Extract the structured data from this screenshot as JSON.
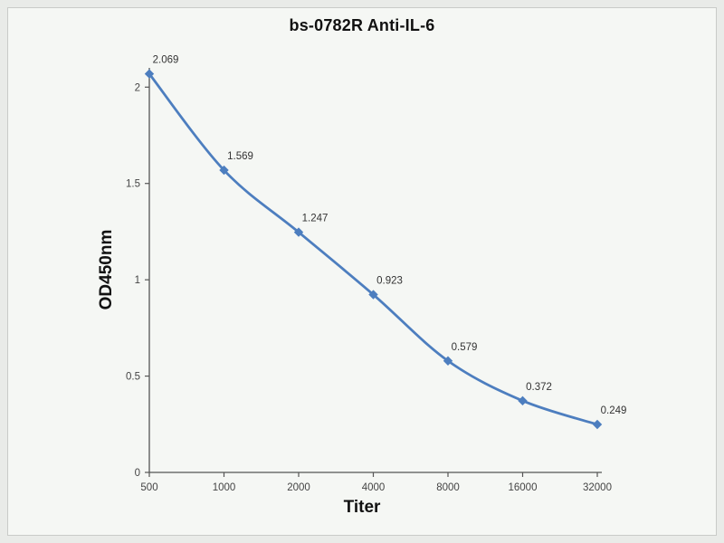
{
  "chart": {
    "title": "bs-0782R Anti-IL-6",
    "ylabel": "OD450nm",
    "xlabel": "Titer"
  },
  "chart_data": {
    "type": "line",
    "title": "bs-0782R Anti-IL-6",
    "xlabel": "Titer",
    "ylabel": "OD450nm",
    "categories": [
      "500",
      "1000",
      "2000",
      "4000",
      "8000",
      "16000",
      "32000"
    ],
    "values": [
      2.069,
      1.569,
      1.247,
      0.923,
      0.579,
      0.372,
      0.249
    ],
    "point_labels": [
      "2.069",
      "1.569",
      "1.247",
      "0.923",
      "0.579",
      "0.372",
      "0.249"
    ],
    "ylim": [
      0,
      2.1
    ],
    "yticks": [
      0,
      0.5,
      1,
      1.5,
      2
    ],
    "ytick_labels": [
      "0",
      "0.5",
      "1",
      "1.5",
      "2"
    ],
    "grid": false,
    "legend": "none",
    "line_color": "#4d7ebf",
    "marker": "diamond",
    "marker_color": "#4d7ebf",
    "axis_color": "#555555"
  }
}
